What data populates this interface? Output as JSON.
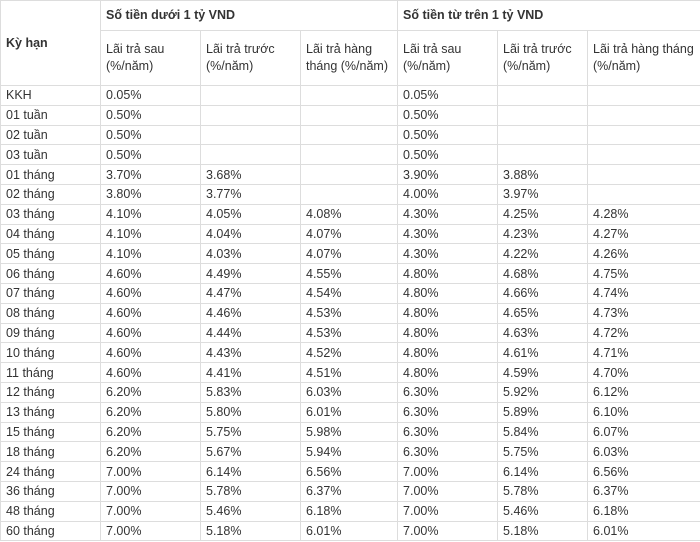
{
  "table": {
    "term_header": "Kỳ hạn",
    "groups": [
      "Số tiền dưới 1 tỷ VND",
      "Số tiền từ trên 1 tỷ VND"
    ],
    "subheaders": [
      "Lãi trả sau (%/năm)",
      "Lãi trả trước (%/năm)",
      "Lãi trả hàng tháng (%/năm)",
      "Lãi trả sau (%/năm)",
      "Lãi trả trước (%/năm)",
      "Lãi trả hàng tháng (%/năm)"
    ],
    "rows": [
      [
        "KKH",
        "0.05%",
        null,
        null,
        "0.05%",
        null,
        null
      ],
      [
        "01 tuần",
        "0.50%",
        null,
        null,
        "0.50%",
        null,
        null
      ],
      [
        "02 tuần",
        "0.50%",
        null,
        null,
        "0.50%",
        null,
        null
      ],
      [
        "03 tuần",
        "0.50%",
        null,
        null,
        "0.50%",
        null,
        null
      ],
      [
        "01 tháng",
        "3.70%",
        "3.68%",
        null,
        "3.90%",
        "3.88%",
        null
      ],
      [
        "02 tháng",
        "3.80%",
        "3.77%",
        null,
        "4.00%",
        "3.97%",
        null
      ],
      [
        "03 tháng",
        "4.10%",
        "4.05%",
        "4.08%",
        "4.30%",
        "4.25%",
        "4.28%"
      ],
      [
        "04 tháng",
        "4.10%",
        "4.04%",
        "4.07%",
        "4.30%",
        "4.23%",
        "4.27%"
      ],
      [
        "05 tháng",
        "4.10%",
        "4.03%",
        "4.07%",
        "4.30%",
        "4.22%",
        "4.26%"
      ],
      [
        "06 tháng",
        "4.60%",
        "4.49%",
        "4.55%",
        "4.80%",
        "4.68%",
        "4.75%"
      ],
      [
        "07 tháng",
        "4.60%",
        "4.47%",
        "4.54%",
        "4.80%",
        "4.66%",
        "4.74%"
      ],
      [
        "08 tháng",
        "4.60%",
        "4.46%",
        "4.53%",
        "4.80%",
        "4.65%",
        "4.73%"
      ],
      [
        "09 tháng",
        "4.60%",
        "4.44%",
        "4.53%",
        "4.80%",
        "4.63%",
        "4.72%"
      ],
      [
        "10 tháng",
        "4.60%",
        "4.43%",
        "4.52%",
        "4.80%",
        "4.61%",
        "4.71%"
      ],
      [
        "11 tháng",
        "4.60%",
        "4.41%",
        "4.51%",
        "4.80%",
        "4.59%",
        "4.70%"
      ],
      [
        "12 tháng",
        "6.20%",
        "5.83%",
        "6.03%",
        "6.30%",
        "5.92%",
        "6.12%"
      ],
      [
        "13 tháng",
        "6.20%",
        "5.80%",
        "6.01%",
        "6.30%",
        "5.89%",
        "6.10%"
      ],
      [
        "15 tháng",
        "6.20%",
        "5.75%",
        "5.98%",
        "6.30%",
        "5.84%",
        "6.07%"
      ],
      [
        "18 tháng",
        "6.20%",
        "5.67%",
        "5.94%",
        "6.30%",
        "5.75%",
        "6.03%"
      ],
      [
        "24 tháng",
        "7.00%",
        "6.14%",
        "6.56%",
        "7.00%",
        "6.14%",
        "6.56%"
      ],
      [
        "36 tháng",
        "7.00%",
        "5.78%",
        "6.37%",
        "7.00%",
        "5.78%",
        "6.37%"
      ],
      [
        "48 tháng",
        "7.00%",
        "5.46%",
        "6.18%",
        "7.00%",
        "5.46%",
        "6.18%"
      ],
      [
        "60 tháng",
        "7.00%",
        "5.18%",
        "6.01%",
        "7.00%",
        "5.18%",
        "6.01%"
      ]
    ]
  }
}
